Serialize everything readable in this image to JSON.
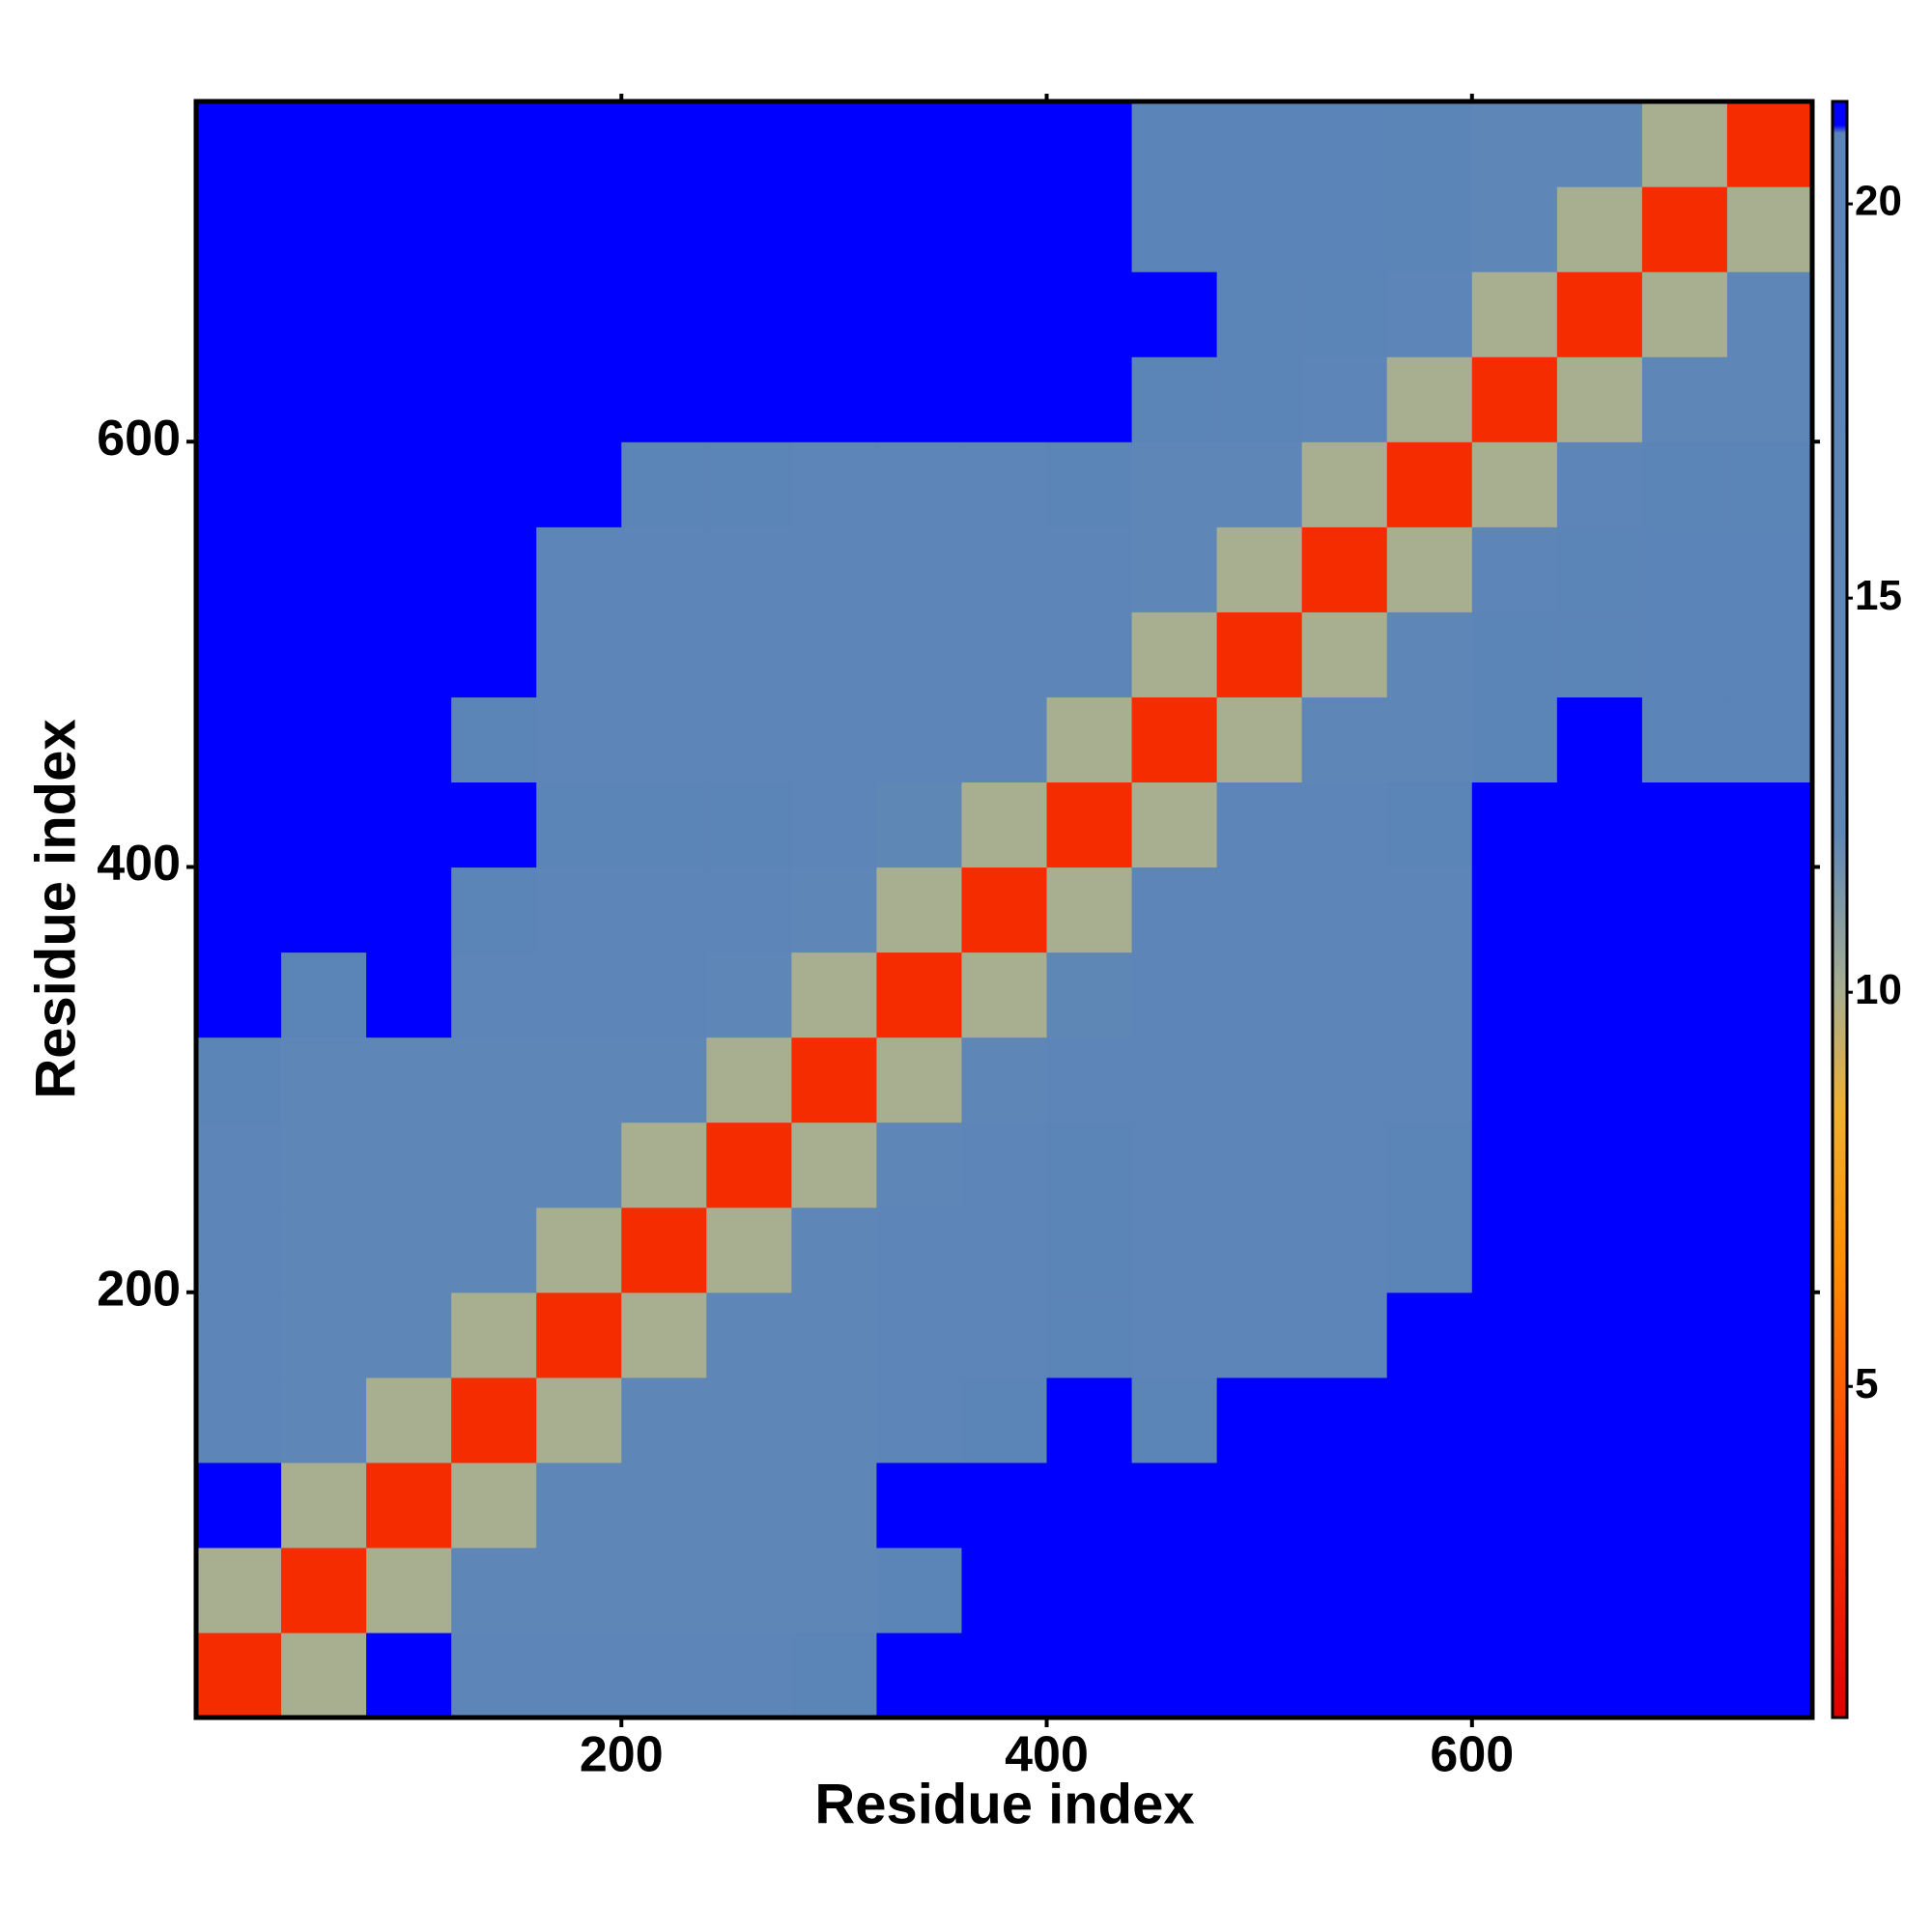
{
  "chart_data": {
    "type": "heatmap",
    "x_label": "Residue index",
    "y_label": "Residue index",
    "edges": [
      0,
      40,
      80,
      120,
      160,
      200,
      240,
      280,
      320,
      360,
      400,
      440,
      480,
      520,
      560,
      600,
      640,
      680,
      720,
      760
    ],
    "z": [
      [
        3,
        10,
        21,
        17,
        17,
        17,
        17,
        19,
        21,
        21,
        21,
        21,
        21,
        21,
        21,
        21,
        21,
        21,
        21
      ],
      [
        10,
        3,
        10,
        14,
        14,
        14,
        14,
        14,
        19,
        21,
        21,
        21,
        21,
        21,
        21,
        21,
        21,
        21,
        21
      ],
      [
        21,
        10,
        3,
        10,
        14,
        14,
        14,
        14,
        21,
        21,
        21,
        21,
        21,
        21,
        21,
        21,
        21,
        21,
        21
      ],
      [
        17,
        14,
        10,
        3,
        10,
        14,
        14,
        14,
        17,
        19,
        21,
        19,
        21,
        21,
        21,
        21,
        21,
        21,
        21
      ],
      [
        17,
        14,
        14,
        10,
        3,
        10,
        14,
        14,
        17,
        17,
        19,
        17,
        17,
        17,
        21,
        21,
        21,
        21,
        21
      ],
      [
        17,
        14,
        14,
        14,
        10,
        3,
        10,
        14,
        17,
        17,
        19,
        17,
        17,
        17,
        19,
        21,
        21,
        21,
        21
      ],
      [
        17,
        14,
        14,
        14,
        14,
        10,
        3,
        10,
        14,
        17,
        19,
        17,
        17,
        17,
        19,
        21,
        21,
        21,
        21
      ],
      [
        19,
        14,
        14,
        14,
        14,
        14,
        10,
        3,
        10,
        14,
        17,
        17,
        17,
        17,
        17,
        21,
        21,
        21,
        21
      ],
      [
        21,
        19,
        21,
        17,
        17,
        17,
        14,
        10,
        3,
        10,
        12,
        17,
        17,
        17,
        17,
        21,
        21,
        21,
        21
      ],
      [
        21,
        21,
        21,
        19,
        17,
        17,
        17,
        14,
        10,
        3,
        10,
        17,
        17,
        17,
        17,
        21,
        21,
        21,
        21
      ],
      [
        21,
        21,
        21,
        21,
        19,
        19,
        19,
        17,
        12,
        10,
        3,
        10,
        17,
        17,
        19,
        21,
        21,
        21,
        21
      ],
      [
        21,
        21,
        21,
        19,
        17,
        17,
        17,
        17,
        17,
        17,
        10,
        3,
        10,
        14,
        14,
        19,
        21,
        20,
        20
      ],
      [
        21,
        21,
        21,
        21,
        17,
        17,
        17,
        17,
        17,
        17,
        17,
        10,
        3,
        10,
        14,
        19,
        19,
        20,
        20
      ],
      [
        21,
        21,
        21,
        21,
        17,
        17,
        17,
        17,
        17,
        17,
        17,
        14,
        10,
        3,
        10,
        17,
        19,
        20,
        20
      ],
      [
        21,
        21,
        21,
        21,
        21,
        19,
        19,
        17,
        17,
        17,
        19,
        14,
        14,
        10,
        3,
        10,
        17,
        19,
        19
      ],
      [
        21,
        21,
        21,
        21,
        21,
        21,
        21,
        21,
        21,
        21,
        21,
        19,
        19,
        17,
        10,
        3,
        10,
        14,
        14
      ],
      [
        21,
        21,
        21,
        21,
        21,
        21,
        21,
        21,
        21,
        21,
        21,
        21,
        19,
        19,
        17,
        10,
        3,
        10,
        14
      ],
      [
        21,
        21,
        21,
        21,
        21,
        21,
        21,
        21,
        21,
        21,
        21,
        20,
        20,
        20,
        19,
        14,
        10,
        3,
        10
      ],
      [
        21,
        21,
        21,
        21,
        21,
        21,
        21,
        21,
        21,
        21,
        21,
        20,
        20,
        20,
        19,
        14,
        14,
        10,
        3
      ]
    ],
    "xlim": [
      0,
      760
    ],
    "ylim": [
      0,
      760
    ],
    "xticks": [
      200,
      400,
      600
    ],
    "yticks": [
      200,
      400,
      600
    ],
    "colorbar": {
      "lim": [
        0.8,
        21.3
      ],
      "ticks": [
        5,
        10,
        15,
        20
      ],
      "stops": [
        [
          0.8,
          "#dd0000"
        ],
        [
          4,
          "#ff4000"
        ],
        [
          6.5,
          "#ff8c00"
        ],
        [
          8.5,
          "#f0b030"
        ],
        [
          10,
          "#a8ae90"
        ],
        [
          12,
          "#5f87b5"
        ],
        [
          20.9,
          "#5b84b8"
        ],
        [
          21,
          "#0000ff"
        ]
      ]
    }
  }
}
